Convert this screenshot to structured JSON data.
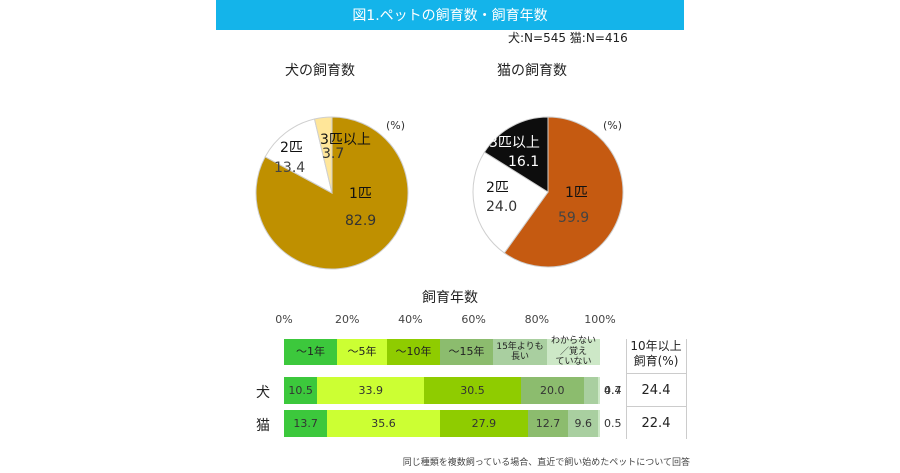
{
  "title": "図1.ペットの飼育数・飼育年数",
  "sample_note": "犬:N=545  猫:N=416",
  "colors": {
    "banner": "#14b4ea",
    "dog_1": "#bf9000",
    "dog_2": "#ffffff",
    "dog_3": "#ffe699",
    "cat_1": "#c55a11",
    "cat_2": "#ffffff",
    "cat_3": "#0d0d0d",
    "years": [
      "#3cc83c",
      "#ccff33",
      "#8fcc00",
      "#8cbc6e",
      "#a9cfa0",
      "#cde8c7"
    ]
  },
  "chart_data": [
    {
      "type": "pie",
      "title": "犬の飼育数",
      "unit_label": "(%)",
      "slices": [
        {
          "label": "1匹",
          "value": 82.9
        },
        {
          "label": "2匹",
          "value": 13.4
        },
        {
          "label": "3匹以上",
          "value": 3.7
        }
      ]
    },
    {
      "type": "pie",
      "title": "猫の飼育数",
      "unit_label": "(%)",
      "slices": [
        {
          "label": "1匹",
          "value": 59.9
        },
        {
          "label": "2匹",
          "value": 24.0
        },
        {
          "label": "3匹以上",
          "value": 16.1
        }
      ]
    },
    {
      "type": "bar",
      "orientation": "horizontal-stacked",
      "title": "飼育年数",
      "x_ticks": [
        "0%",
        "20%",
        "40%",
        "60%",
        "80%",
        "100%"
      ],
      "xlim": [
        0,
        100
      ],
      "categories": [
        "～1年",
        "～5年",
        "～10年",
        "～15年",
        "15年よりも長い",
        "わからない／覚えていない"
      ],
      "category_display": [
        "～1年",
        "～5年",
        "～10年",
        "～15年",
        "15年よりも\n長い",
        "わからない／覚え\nていない"
      ],
      "rows": [
        {
          "name": "犬",
          "values": [
            10.5,
            33.9,
            30.5,
            20.0,
            4.4,
            0.7
          ],
          "display": [
            "10.5",
            "33.9",
            "30.5",
            "20.0",
            "4.4",
            "0.7"
          ]
        },
        {
          "name": "猫",
          "values": [
            13.7,
            35.6,
            27.9,
            12.7,
            9.6,
            0.5
          ],
          "display": [
            "13.7",
            "35.6",
            "27.9",
            "12.7",
            "9.6",
            "0.5"
          ]
        }
      ],
      "extra_column": {
        "header": "10年以上\n飼育(%)",
        "values": [
          "24.4",
          "22.4"
        ]
      }
    }
  ],
  "footnote": "同じ種類を複数飼っている場合、直近で飼い始めたペットについて回答"
}
